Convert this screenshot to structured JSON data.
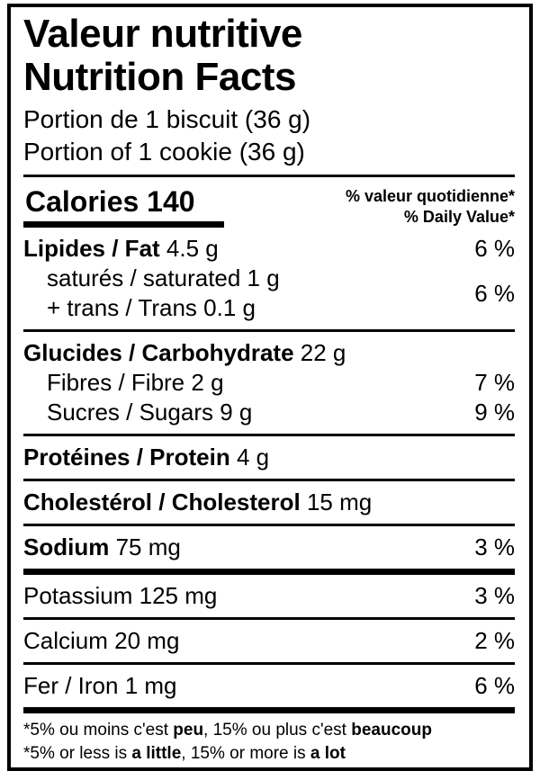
{
  "header": {
    "title_fr": "Valeur nutritive",
    "title_en": "Nutrition Facts",
    "serving_fr": "Portion de 1 biscuit (36 g)",
    "serving_en": "Portion of 1 cookie (36 g)"
  },
  "calories": {
    "label": "Calories",
    "value": "140"
  },
  "dv_header": {
    "fr": "% valeur quotidienne*",
    "en": "% Daily Value*"
  },
  "nutrients": {
    "fat": {
      "label": "Lipides / Fat",
      "value": "4.5 g",
      "dv": "6 %"
    },
    "saturated_trans": {
      "line1": "saturés / saturated 1 g",
      "line2": "+ trans / Trans 0.1 g",
      "dv": "6 %"
    },
    "carbohydrate": {
      "label": "Glucides / Carbohydrate",
      "value": "22 g"
    },
    "fibre": {
      "label": "Fibres / Fibre",
      "value": "2 g",
      "dv": "7 %"
    },
    "sugars": {
      "label": "Sucres / Sugars",
      "value": "9 g",
      "dv": "9 %"
    },
    "protein": {
      "label": "Protéines / Protein",
      "value": "4 g"
    },
    "cholesterol": {
      "label": "Cholestérol / Cholesterol",
      "value": "15 mg"
    },
    "sodium": {
      "label": "Sodium",
      "value": "75 mg",
      "dv": "3 %"
    },
    "potassium": {
      "label": "Potassium",
      "value": "125 mg",
      "dv": "3 %"
    },
    "calcium": {
      "label": "Calcium",
      "value": "20 mg",
      "dv": "2 %"
    },
    "iron": {
      "label": "Fer / Iron",
      "value": "1 mg",
      "dv": "6 %"
    }
  },
  "footnotes": {
    "fr": {
      "pre": "*5% ou moins c'est ",
      "low": "peu",
      "mid": ", 15% ou plus c'est ",
      "high": "beaucoup"
    },
    "en": {
      "pre": "*5% or less is ",
      "low": "a little",
      "mid": ", 15% or more is ",
      "high": "a lot"
    }
  },
  "colors": {
    "foreground": "#000000",
    "background": "#ffffff"
  }
}
